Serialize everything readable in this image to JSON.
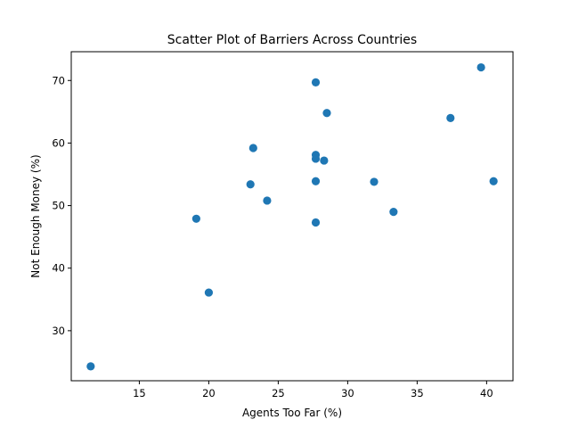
{
  "chart_data": {
    "type": "scatter",
    "title": "Scatter Plot of Barriers Across Countries",
    "xlabel": "Agents Too Far (%)",
    "ylabel": "Not Enough Money (%)",
    "xlim": [
      10.1,
      41.9
    ],
    "ylim": [
      22.0,
      74.6
    ],
    "xticks": [
      15,
      20,
      25,
      30,
      35,
      40
    ],
    "yticks": [
      30,
      40,
      50,
      60,
      70
    ],
    "grid": false,
    "marker_color": "#1f77b4",
    "points": [
      {
        "x": 11.5,
        "y": 24.3
      },
      {
        "x": 19.1,
        "y": 47.9
      },
      {
        "x": 20.0,
        "y": 36.1
      },
      {
        "x": 23.0,
        "y": 53.4
      },
      {
        "x": 23.2,
        "y": 59.2
      },
      {
        "x": 24.2,
        "y": 50.8
      },
      {
        "x": 27.7,
        "y": 69.7
      },
      {
        "x": 27.7,
        "y": 58.1
      },
      {
        "x": 27.7,
        "y": 57.5
      },
      {
        "x": 27.7,
        "y": 53.9
      },
      {
        "x": 27.7,
        "y": 47.3
      },
      {
        "x": 28.3,
        "y": 57.2
      },
      {
        "x": 28.5,
        "y": 64.8
      },
      {
        "x": 31.9,
        "y": 53.8
      },
      {
        "x": 33.3,
        "y": 49.0
      },
      {
        "x": 37.4,
        "y": 64.0
      },
      {
        "x": 39.6,
        "y": 72.1
      },
      {
        "x": 40.5,
        "y": 53.9
      }
    ]
  }
}
